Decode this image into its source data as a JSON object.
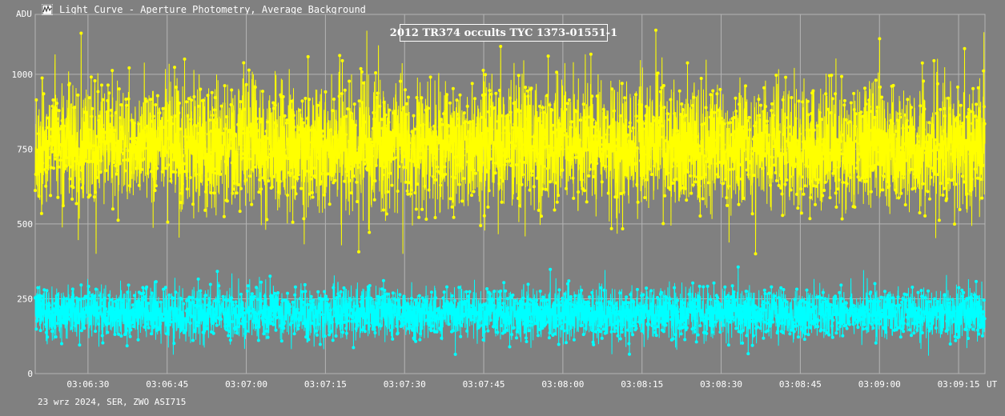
{
  "window": {
    "title": "Light Curve - Aperture Photometry, Average Background",
    "icon": "light-curve-app-icon"
  },
  "footer": {
    "note": "23 wrz 2024, SER, ZWO ASI715"
  },
  "colors": {
    "background": "#808080",
    "grid": "#b4b4b4",
    "axis_text": "#ffffff",
    "target_series": "#ffff00",
    "background_series": "#00ffff"
  },
  "chart_data": {
    "type": "line",
    "title": "2012 TR374 occults TYC 1373-01551-1",
    "ylabel": "ADU",
    "xlabel": "UT",
    "ylim": [
      0,
      1200
    ],
    "xlim": [
      "03:06:20",
      "03:09:20"
    ],
    "y_ticks": [
      0,
      250,
      500,
      750,
      1000
    ],
    "x_ticks": [
      "03:06:30",
      "03:06:45",
      "03:07:00",
      "03:07:15",
      "03:07:30",
      "03:07:45",
      "03:08:00",
      "03:08:15",
      "03:08:30",
      "03:08:45",
      "03:09:00",
      "03:09:15"
    ],
    "grid": true,
    "series": [
      {
        "color": "#ffff00",
        "mean": 760,
        "range": [
          400,
          1180
        ],
        "samples_per_second": 30
      },
      {
        "color": "#00ffff",
        "mean": 200,
        "range": [
          60,
          380
        ],
        "samples_per_second": 30
      }
    ]
  }
}
